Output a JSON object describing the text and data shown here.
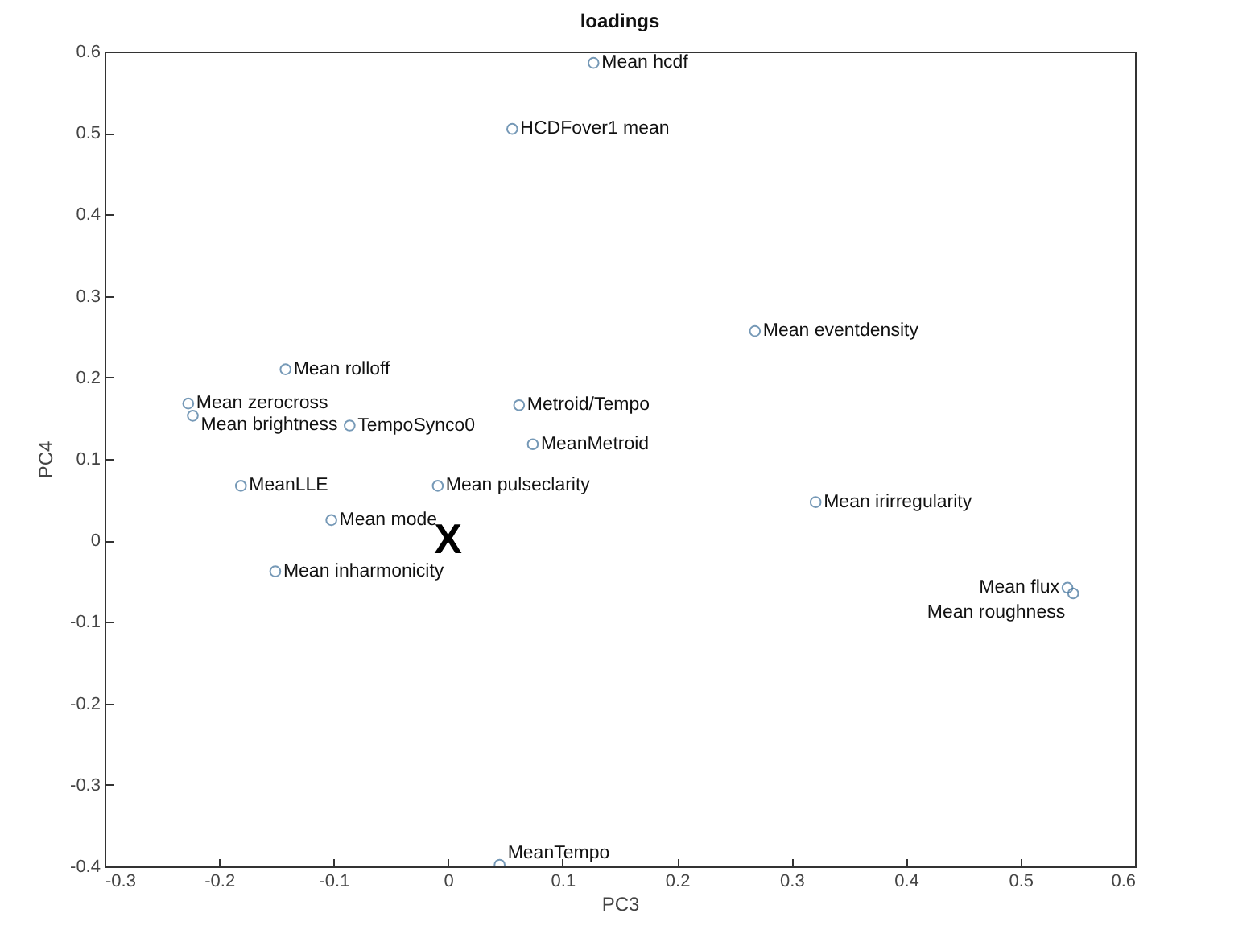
{
  "chart_data": {
    "type": "scatter",
    "title": "loadings",
    "xlabel": "PC3",
    "ylabel": "PC4",
    "xlim": [
      -0.3,
      0.6
    ],
    "xticks": [
      -0.3,
      -0.2,
      -0.1,
      0,
      0.1,
      0.2,
      0.3,
      0.4,
      0.5,
      0.6
    ],
    "ylim": [
      -0.4,
      0.6
    ],
    "yticks": [
      -0.4,
      -0.3,
      -0.2,
      -0.1,
      0,
      0.1,
      0.2,
      0.3,
      0.4,
      0.5,
      0.6
    ],
    "grid": false,
    "marker": "circle",
    "series": [
      {
        "color": "#3d6f99",
        "x": [
          0.127,
          0.056,
          -0.142,
          -0.227,
          -0.223,
          -0.086,
          0.062,
          0.074,
          0.268,
          -0.181,
          -0.009,
          -0.102,
          -0.151,
          0.045,
          0.321,
          0.541,
          0.546
        ],
        "values": [
          0.586,
          0.505,
          0.21,
          0.168,
          0.153,
          0.141,
          0.166,
          0.118,
          0.257,
          0.067,
          0.067,
          0.025,
          -0.038,
          -0.398,
          0.047,
          -0.058,
          -0.065
        ]
      }
    ],
    "annotations": [
      {
        "text": "Mean hcdf",
        "x": 0.127,
        "y": 0.586
      },
      {
        "text": "HCDFover1 mean",
        "x": 0.056,
        "y": 0.505
      },
      {
        "text": "Mean rolloff",
        "x": -0.142,
        "y": 0.21
      },
      {
        "text": "Mean zerocross",
        "x": -0.227,
        "y": 0.168
      },
      {
        "text": "Mean brightness",
        "x": -0.223,
        "y": 0.153
      },
      {
        "text": "TempoSynco0",
        "x": -0.086,
        "y": 0.141
      },
      {
        "text": "Metroid/Tempo",
        "x": 0.062,
        "y": 0.166
      },
      {
        "text": "MeanMetroid",
        "x": 0.074,
        "y": 0.118
      },
      {
        "text": "Mean eventdensity",
        "x": 0.268,
        "y": 0.257
      },
      {
        "text": "MeanLLE",
        "x": -0.181,
        "y": 0.067
      },
      {
        "text": "Mean pulseclarity",
        "x": -0.009,
        "y": 0.067
      },
      {
        "text": "Mean mode",
        "x": -0.102,
        "y": 0.025
      },
      {
        "text": "Mean inharmonicity",
        "x": -0.151,
        "y": -0.038
      },
      {
        "text": "MeanTempo",
        "x": 0.045,
        "y": -0.398
      },
      {
        "text": "Mean irirregularity",
        "x": 0.321,
        "y": 0.047
      },
      {
        "text": "Mean flux",
        "x": 0.541,
        "y": -0.058
      },
      {
        "text": "Mean roughness",
        "x": 0.546,
        "y": -0.065
      },
      "X"
    ]
  }
}
